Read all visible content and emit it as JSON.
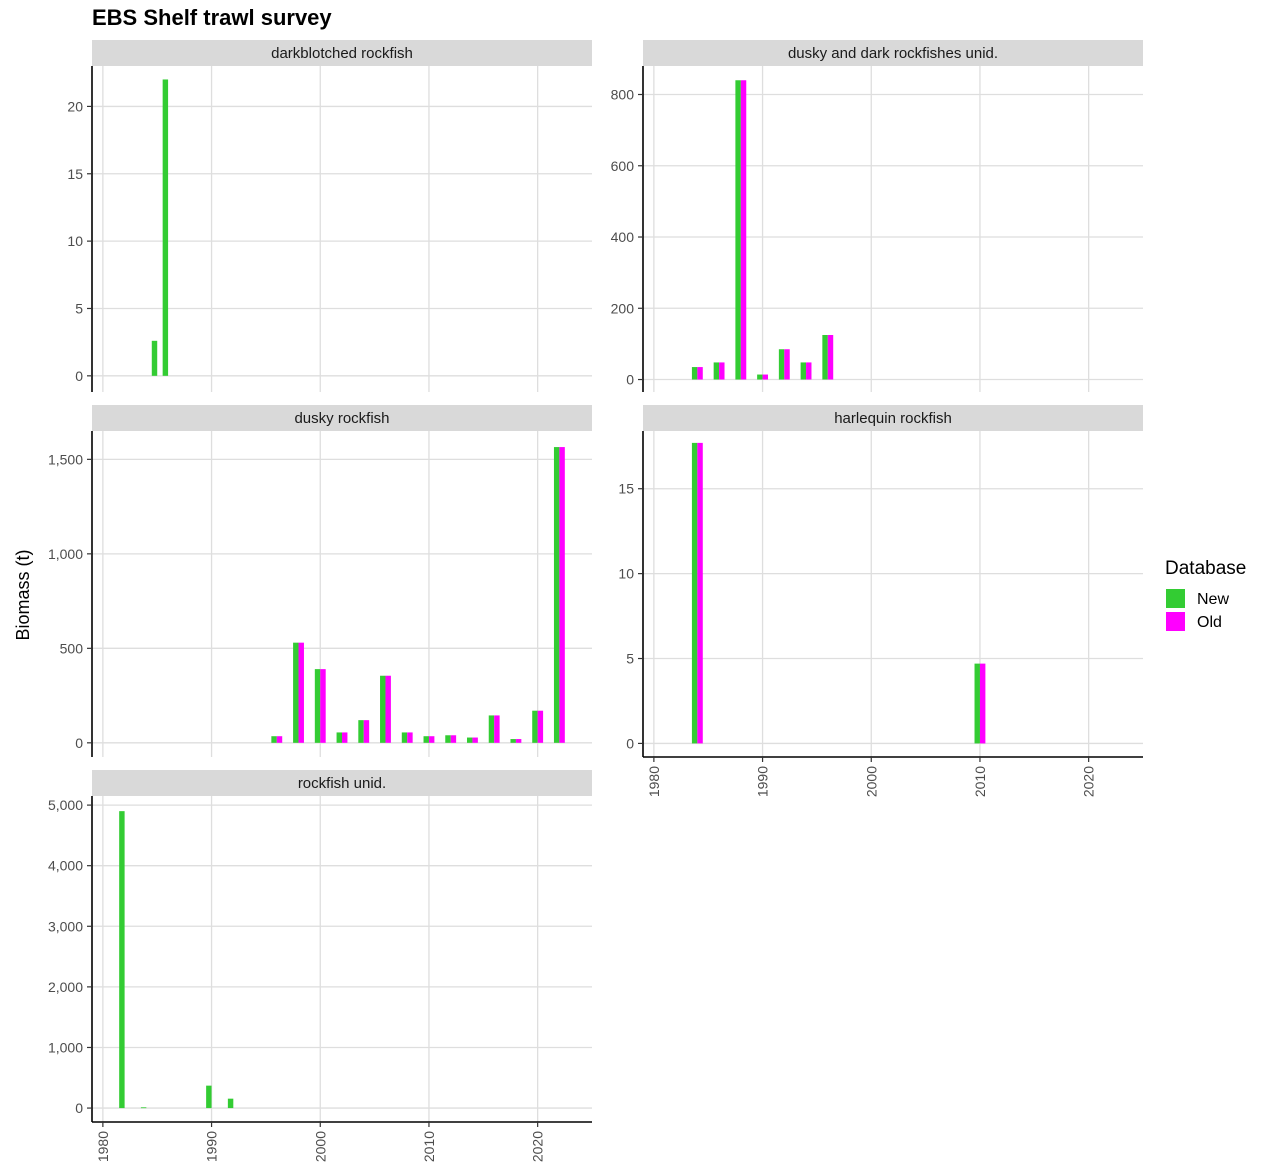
{
  "title": "EBS Shelf trawl survey",
  "ylabel": "Biomass (t)",
  "legend": {
    "title": "Database",
    "items": [
      {
        "label": "New",
        "color": "#33cc33"
      },
      {
        "label": "Old",
        "color": "#ff00ff"
      }
    ]
  },
  "chart_data": {
    "type": "bar",
    "xlim": [
      1979,
      2025
    ],
    "x_ticks": [
      1980,
      1990,
      2000,
      2010,
      2020
    ],
    "grid": true,
    "legend_position": "right",
    "facets": [
      {
        "name": "darkblotched rockfish",
        "ylim": [
          -1.2,
          23
        ],
        "y_ticks": [
          0,
          5,
          10,
          15,
          20
        ],
        "y_tick_labels": [
          "0",
          "5",
          "10",
          "15",
          "20"
        ],
        "series": [
          {
            "name": "New",
            "points": [
              [
                1985,
                2.6
              ],
              [
                1986,
                22
              ]
            ]
          },
          {
            "name": "Old",
            "points": []
          }
        ]
      },
      {
        "name": "dusky and dark rockfishes unid.",
        "ylim": [
          -35,
          880
        ],
        "y_ticks": [
          0,
          200,
          400,
          600,
          800
        ],
        "y_tick_labels": [
          "0",
          "200",
          "400",
          "600",
          "800"
        ],
        "series": [
          {
            "name": "New",
            "points": [
              [
                1984,
                35
              ],
              [
                1986,
                48
              ],
              [
                1988,
                840
              ],
              [
                1990,
                14
              ],
              [
                1992,
                85
              ],
              [
                1994,
                48
              ],
              [
                1996,
                125
              ]
            ]
          },
          {
            "name": "Old",
            "points": [
              [
                1984,
                35
              ],
              [
                1986,
                48
              ],
              [
                1988,
                840
              ],
              [
                1990,
                14
              ],
              [
                1992,
                85
              ],
              [
                1994,
                48
              ],
              [
                1996,
                125
              ]
            ]
          }
        ]
      },
      {
        "name": "dusky rockfish",
        "ylim": [
          -75,
          1650
        ],
        "y_ticks": [
          0,
          500,
          1000,
          1500
        ],
        "y_tick_labels": [
          "0",
          "500",
          "1,000",
          "1,500"
        ],
        "series": [
          {
            "name": "New",
            "points": [
              [
                1996,
                35
              ],
              [
                1998,
                530
              ],
              [
                2000,
                390
              ],
              [
                2002,
                55
              ],
              [
                2004,
                120
              ],
              [
                2006,
                355
              ],
              [
                2008,
                55
              ],
              [
                2010,
                35
              ],
              [
                2012,
                40
              ],
              [
                2014,
                28
              ],
              [
                2016,
                145
              ],
              [
                2018,
                20
              ],
              [
                2020,
                170
              ],
              [
                2022,
                1565
              ]
            ]
          },
          {
            "name": "Old",
            "points": [
              [
                1996,
                35
              ],
              [
                1998,
                530
              ],
              [
                2000,
                390
              ],
              [
                2002,
                55
              ],
              [
                2004,
                120
              ],
              [
                2006,
                355
              ],
              [
                2008,
                55
              ],
              [
                2010,
                35
              ],
              [
                2012,
                40
              ],
              [
                2014,
                28
              ],
              [
                2016,
                145
              ],
              [
                2018,
                20
              ],
              [
                2020,
                170
              ],
              [
                2022,
                1565
              ]
            ]
          }
        ]
      },
      {
        "name": "harlequin rockfish",
        "ylim": [
          -0.8,
          18.4
        ],
        "y_ticks": [
          0,
          5,
          10,
          15
        ],
        "y_tick_labels": [
          "0",
          "5",
          "10",
          "15"
        ],
        "series": [
          {
            "name": "New",
            "points": [
              [
                1984,
                17.7
              ],
              [
                2010,
                4.7
              ]
            ]
          },
          {
            "name": "Old",
            "points": [
              [
                1984,
                17.7
              ],
              [
                2010,
                4.7
              ]
            ]
          }
        ]
      },
      {
        "name": "rockfish unid.",
        "ylim": [
          -230,
          5150
        ],
        "y_ticks": [
          0,
          1000,
          2000,
          3000,
          4000,
          5000
        ],
        "y_tick_labels": [
          "0",
          "1,000",
          "2,000",
          "3,000",
          "4,000",
          "5,000"
        ],
        "series": [
          {
            "name": "New",
            "points": [
              [
                1982,
                4900
              ],
              [
                1984,
                12
              ],
              [
                1990,
                370
              ],
              [
                1992,
                155
              ]
            ]
          },
          {
            "name": "Old",
            "points": []
          }
        ]
      }
    ]
  }
}
